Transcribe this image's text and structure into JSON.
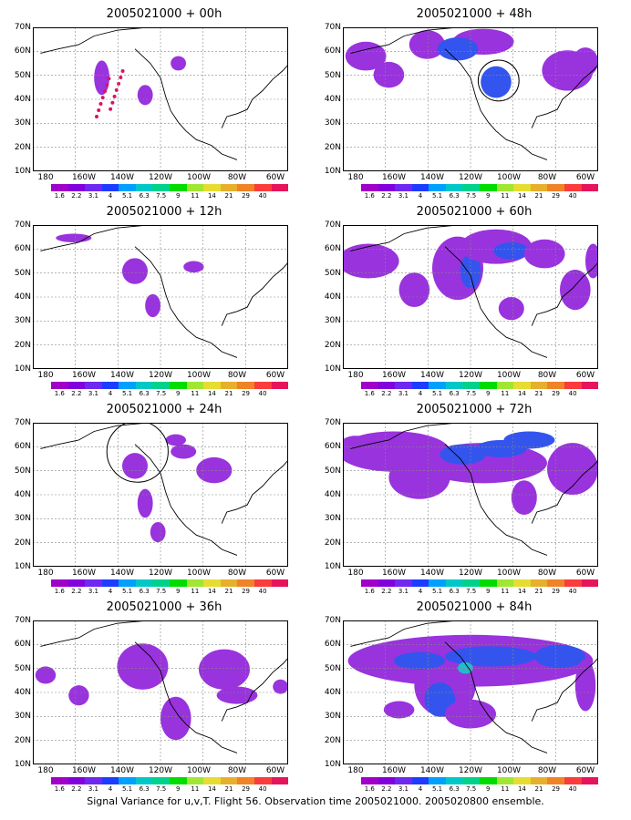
{
  "caption": "Signal Variance for u,v,T. Flight 56. Observation time 2005021000. 2005020800 ensemble.",
  "y_ticks": [
    "70N",
    "60N",
    "50N",
    "40N",
    "30N",
    "20N",
    "10N"
  ],
  "x_ticks": [
    "180",
    "160W",
    "140W",
    "120W",
    "100W",
    "80W",
    "60W"
  ],
  "colorbar": {
    "labels": [
      "1.6",
      "2.2",
      "3.1",
      "4",
      "5.1",
      "6.3",
      "7.5",
      "9",
      "11",
      "14",
      "21",
      "29",
      "40"
    ],
    "colors": [
      "#a000c8",
      "#8200dc",
      "#6e28f0",
      "#1e3cff",
      "#00a0ff",
      "#00c8c8",
      "#00d28c",
      "#00dc00",
      "#a0e632",
      "#e6dc32",
      "#e6af2d",
      "#f08228",
      "#fa3c3c",
      "#e6145a"
    ]
  },
  "panels": [
    {
      "id": "00",
      "title": "2005021000 + 00h"
    },
    {
      "id": "48",
      "title": "2005021000 + 48h"
    },
    {
      "id": "12",
      "title": "2005021000 + 12h"
    },
    {
      "id": "60",
      "title": "2005021000 + 60h"
    },
    {
      "id": "24",
      "title": "2005021000 + 24h"
    },
    {
      "id": "72",
      "title": "2005021000 + 72h"
    },
    {
      "id": "36",
      "title": "2005021000 + 36h"
    },
    {
      "id": "84",
      "title": "2005021000 + 84h"
    }
  ]
}
